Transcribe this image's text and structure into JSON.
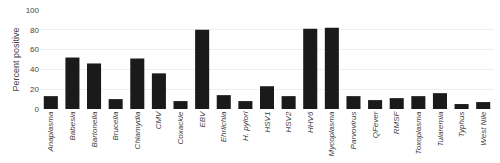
{
  "chart_data": {
    "type": "bar",
    "categories": [
      "Anaplasma",
      "Babesia",
      "Bartonella",
      "Brucella",
      "Chlamydia",
      "CMV",
      "Coxackie",
      "EBV",
      "Ehrlichia",
      "H. pylori",
      "HSV1",
      "HSV2",
      "HHV6",
      "Mycoplasma",
      "Parvovirus",
      "QFever",
      "RMSF",
      "Toxoplasma",
      "Tularemia",
      "Typhus",
      "West Nile"
    ],
    "values": [
      13,
      52,
      46,
      10,
      51,
      36,
      8,
      80,
      14,
      8,
      23,
      13,
      81,
      82,
      13,
      9,
      11,
      13,
      16,
      5,
      7
    ],
    "color": "#1a1a1a",
    "ylabel": "Percent positive",
    "ylim": [
      0,
      100
    ],
    "yticks": [
      0,
      20,
      40,
      60,
      80,
      100
    ],
    "grid": true
  }
}
